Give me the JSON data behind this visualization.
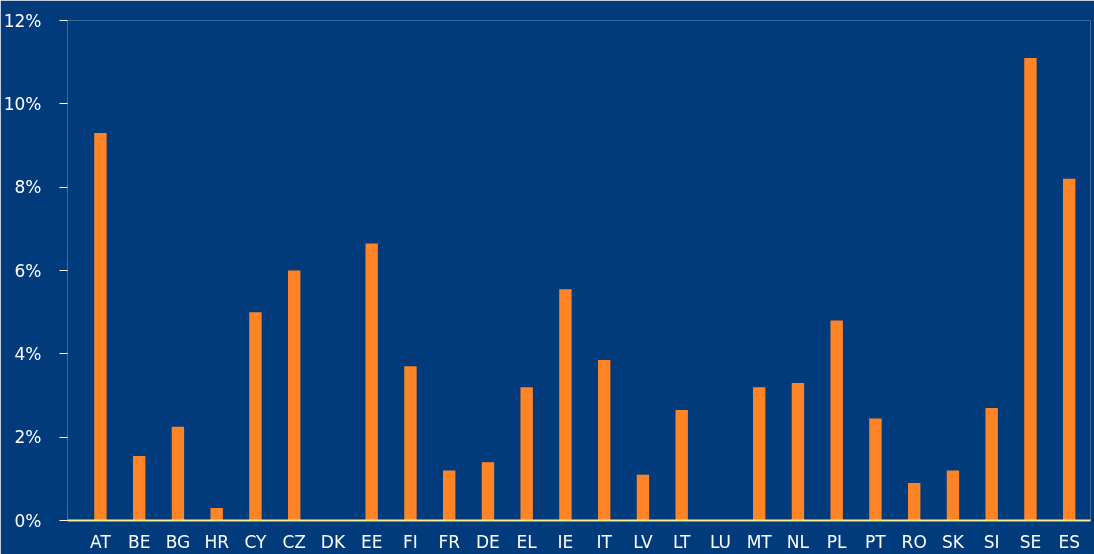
{
  "chart_data": {
    "type": "bar",
    "categories": [
      "AT",
      "BE",
      "BG",
      "HR",
      "CY",
      "CZ",
      "DK",
      "EE",
      "FI",
      "FR",
      "DE",
      "EL",
      "IE",
      "IT",
      "LV",
      "LT",
      "LU",
      "MT",
      "NL",
      "PL",
      "PT",
      "RO",
      "SK",
      "SI",
      "SE",
      "ES"
    ],
    "values": [
      9.3,
      1.55,
      2.25,
      0.3,
      5.0,
      6.0,
      0,
      6.65,
      3.7,
      1.2,
      1.4,
      3.2,
      5.55,
      3.85,
      1.1,
      2.65,
      0,
      3.2,
      3.3,
      4.8,
      2.45,
      0.9,
      1.2,
      2.7,
      11.1,
      8.2
    ],
    "color": "#ff8426",
    "ylim": [
      0,
      12
    ],
    "yticks": [
      {
        "value": 0,
        "label": "0%"
      },
      {
        "value": 2,
        "label": "2%"
      },
      {
        "value": 4,
        "label": "4%"
      },
      {
        "value": 6,
        "label": "6%"
      },
      {
        "value": 8,
        "label": "8%"
      },
      {
        "value": 10,
        "label": "10%"
      },
      {
        "value": 12,
        "label": "12%"
      }
    ],
    "grid": false
  }
}
